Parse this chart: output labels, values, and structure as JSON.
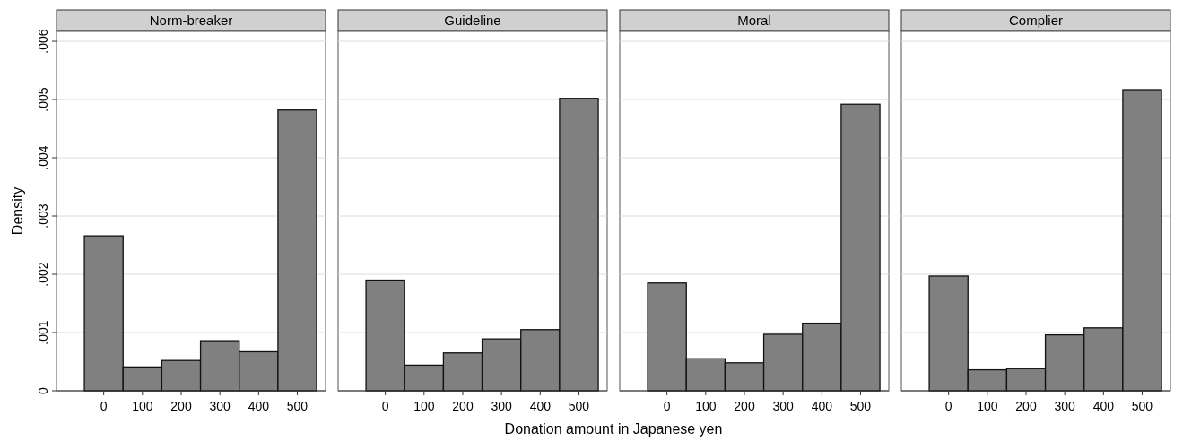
{
  "chart_data": [
    {
      "type": "histogram",
      "title": "Norm-breaker",
      "ylabel": "Density",
      "bins": [
        -50,
        50,
        150,
        250,
        350,
        450,
        550
      ],
      "values": [
        0.00266,
        0.00041,
        0.00052,
        0.00086,
        0.00067,
        0.00482
      ],
      "color": "#808080",
      "xlim": [
        -122,
        573
      ],
      "xticks": [
        0,
        100,
        200,
        300,
        400,
        500
      ],
      "ylim": [
        0,
        0.00617
      ],
      "yticks": [
        0,
        {
          "value": 0.001,
          "label": ".001"
        },
        {
          "value": 0.002,
          "label": ".002"
        },
        {
          "value": 0.003,
          "label": ".003"
        },
        {
          "value": 0.004,
          "label": ".004"
        },
        {
          "value": 0.005,
          "label": ".005"
        },
        {
          "value": 0.006,
          "label": ".006"
        }
      ],
      "grid": "y"
    },
    {
      "type": "histogram",
      "title": "Guideline",
      "xlabel": "Donation amount in Japanese yen",
      "bins": [
        -50,
        50,
        150,
        250,
        350,
        450,
        550
      ],
      "values": [
        0.0019,
        0.00044,
        0.00065,
        0.00089,
        0.00105,
        0.00502
      ],
      "color": "#808080",
      "xlim": [
        -122,
        573
      ],
      "xticks": [
        0,
        100,
        200,
        300,
        400,
        500
      ],
      "ylim": [
        0,
        0.00617
      ],
      "yticks": [
        0,
        0.001,
        0.002,
        0.003,
        0.004,
        0.005,
        0.006
      ],
      "grid": "y",
      "tick_labels": "x"
    },
    {
      "type": "histogram",
      "title": "Moral",
      "bins": [
        -50,
        50,
        150,
        250,
        350,
        450,
        550
      ],
      "values": [
        0.00185,
        0.00055,
        0.00048,
        0.00097,
        0.00116,
        0.00492
      ],
      "color": "#808080",
      "xlim": [
        -122,
        573
      ],
      "xticks": [
        0,
        100,
        200,
        300,
        400,
        500
      ],
      "ylim": [
        0,
        0.00617
      ],
      "yticks": [
        0,
        0.001,
        0.002,
        0.003,
        0.004,
        0.005,
        0.006
      ],
      "grid": "y",
      "tick_labels": "x"
    },
    {
      "type": "histogram",
      "title": "Complier",
      "bins": [
        -50,
        50,
        150,
        250,
        350,
        450,
        550
      ],
      "values": [
        0.00197,
        0.00036,
        0.00038,
        0.00096,
        0.00108,
        0.00517
      ],
      "color": "#808080",
      "xlim": [
        -122,
        573
      ],
      "xticks": [
        0,
        100,
        200,
        300,
        400,
        500
      ],
      "ylim": [
        0,
        0.00617
      ],
      "yticks": [
        0,
        0.001,
        0.002,
        0.003,
        0.004,
        0.005,
        0.006
      ],
      "grid": "y",
      "tick_labels": "x"
    }
  ]
}
